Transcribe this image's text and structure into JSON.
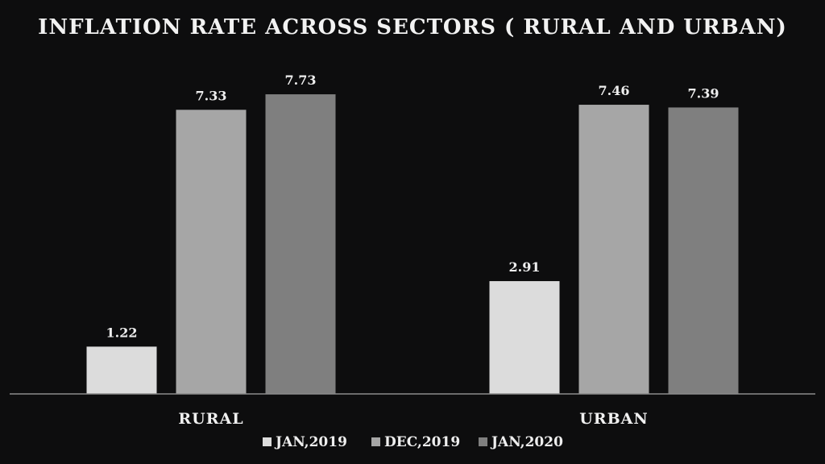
{
  "chart_data": {
    "type": "bar",
    "title": "INFLATION RATE ACROSS SECTORS ( RURAL AND URBAN)",
    "categories": [
      "RURAL",
      "URBAN"
    ],
    "series": [
      {
        "name": "JAN,2019",
        "values": [
          1.22,
          2.91
        ],
        "labels": [
          "1.22",
          "2.91"
        ],
        "color": "#dcdcdc"
      },
      {
        "name": "DEC,2019",
        "values": [
          7.33,
          7.46
        ],
        "labels": [
          "7.33",
          "7.46"
        ],
        "color": "#a6a6a6"
      },
      {
        "name": "JAN,2020",
        "values": [
          7.73,
          7.39
        ],
        "labels": [
          "7.73",
          "7.39"
        ],
        "color": "#7f7f7f"
      }
    ],
    "xlabel": "",
    "ylabel": "",
    "ylim": [
      0,
      8.5
    ],
    "grid": false,
    "legend_position": "bottom",
    "axis_color": "#8c8c8c"
  }
}
